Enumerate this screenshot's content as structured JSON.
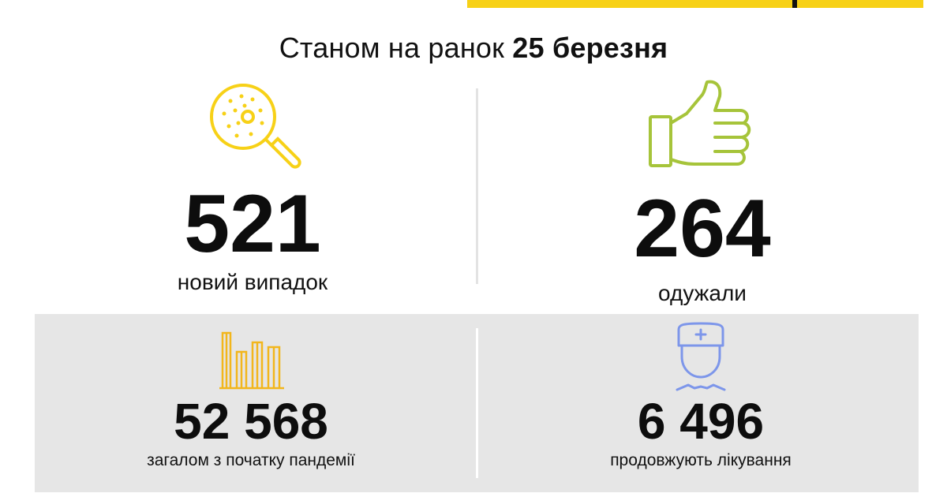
{
  "headline": {
    "prefix": "Станом на ранок",
    "date": "25 березня"
  },
  "stats": {
    "new_cases": {
      "value": "521",
      "label": "новий випадок",
      "icon": "magnifier-virus-icon",
      "color": "#f7d117"
    },
    "recovered": {
      "value": "264",
      "label": "одужали",
      "icon": "thumbs-up-icon",
      "color": "#a6c43a"
    },
    "total": {
      "value": "52 568",
      "label": "загалом з початку пандемії",
      "icon": "bar-chart-icon",
      "color": "#f2b61c"
    },
    "in_treatment": {
      "value": "6 496",
      "label": "продовжують лікування",
      "icon": "doctor-icon",
      "color": "#7d96ea"
    }
  }
}
